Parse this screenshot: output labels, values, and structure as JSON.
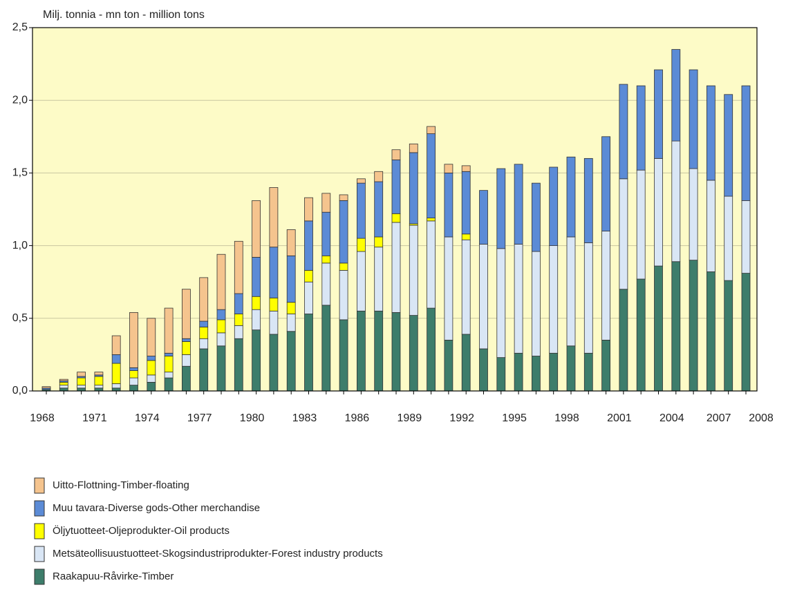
{
  "chart_data": {
    "type": "stacked_bar",
    "y_label": "Milj. tonnia - mn ton - million tons",
    "categories": [
      "1968",
      null,
      null,
      "1971",
      null,
      null,
      "1974",
      null,
      null,
      "1977",
      null,
      null,
      "1980",
      null,
      null,
      "1983",
      null,
      null,
      "1986",
      null,
      null,
      "1989",
      null,
      null,
      "1992",
      null,
      null,
      "1995",
      null,
      null,
      "1998",
      null,
      null,
      "2001",
      null,
      null,
      "2004",
      null,
      null,
      "2007",
      "2008"
    ],
    "series": [
      {
        "name": "Uitto-Flottning-Timber-floating",
        "color": "#f5c48e",
        "values": [
          0.01,
          0.01,
          0.03,
          0.02,
          0.13,
          0.38,
          0.26,
          0.31,
          0.34,
          0.3,
          0.38,
          0.36,
          0.39,
          0.41,
          0.18,
          0.16,
          0.13,
          0.04,
          0.03,
          0.07,
          0.07,
          0.06,
          0.05,
          0.06,
          0.04,
          0,
          0,
          0,
          0,
          0,
          0,
          0,
          0,
          0,
          0,
          0,
          0,
          0,
          0,
          0,
          0
        ]
      },
      {
        "name": "Muu tavara-Diverse gods-Other merchandise",
        "color": "#5b8bd6",
        "values": [
          0.01,
          0.01,
          0.01,
          0.01,
          0.06,
          0.02,
          0.03,
          0.02,
          0.02,
          0.04,
          0.07,
          0.14,
          0.27,
          0.35,
          0.32,
          0.34,
          0.3,
          0.43,
          0.38,
          0.38,
          0.37,
          0.49,
          0.58,
          0.44,
          0.43,
          0.37,
          0.55,
          0.55,
          0.47,
          0.54,
          0.55,
          0.58,
          0.65,
          0.65,
          0.58,
          0.61,
          0.63,
          0.68,
          0.65,
          0.7,
          0.79
        ]
      },
      {
        "name": "Öljytuotteet-Oljeprodukter-Oil products",
        "color": "#ffff00",
        "values": [
          0,
          0.02,
          0.05,
          0.06,
          0.14,
          0.05,
          0.1,
          0.11,
          0.09,
          0.08,
          0.09,
          0.08,
          0.09,
          0.09,
          0.08,
          0.08,
          0.05,
          0.05,
          0.09,
          0.07,
          0.06,
          0.01,
          0.02,
          0,
          0.04,
          0,
          0,
          0,
          0,
          0,
          0,
          0,
          0,
          0,
          0,
          0,
          0,
          0,
          0,
          0,
          0
        ]
      },
      {
        "name": "Metsäteollisuustuotteet-Skogsindustriprodukter-Forest industry products",
        "color": "#d9e6f5",
        "values": [
          0,
          0.02,
          0.02,
          0.02,
          0.03,
          0.05,
          0.05,
          0.04,
          0.08,
          0.07,
          0.09,
          0.09,
          0.14,
          0.16,
          0.12,
          0.22,
          0.29,
          0.34,
          0.41,
          0.44,
          0.62,
          0.62,
          0.6,
          0.71,
          0.65,
          0.72,
          0.75,
          0.75,
          0.72,
          0.74,
          0.75,
          0.76,
          0.75,
          0.76,
          0.75,
          0.74,
          0.83,
          0.63,
          0.63,
          0.58,
          0.5
        ]
      },
      {
        "name": "Raakapuu-Råvirke-Timber",
        "color": "#3d7d6b",
        "values": [
          0.01,
          0.02,
          0.02,
          0.02,
          0.02,
          0.04,
          0.06,
          0.09,
          0.17,
          0.29,
          0.31,
          0.36,
          0.42,
          0.39,
          0.41,
          0.53,
          0.59,
          0.49,
          0.55,
          0.55,
          0.54,
          0.52,
          0.57,
          0.35,
          0.39,
          0.29,
          0.23,
          0.26,
          0.24,
          0.26,
          0.31,
          0.26,
          0.35,
          0.7,
          0.77,
          0.86,
          0.89,
          0.9,
          0.82,
          0.76,
          0.81
        ]
      }
    ],
    "ylim": [
      0,
      2.5
    ],
    "yticks": [
      {
        "value": 0,
        "label": "0,0"
      },
      {
        "value": 0.5,
        "label": "0,5"
      },
      {
        "value": 1.0,
        "label": "1,0"
      },
      {
        "value": 1.5,
        "label": "1,5"
      },
      {
        "value": 2.0,
        "label": "2,0"
      },
      {
        "value": 2.5,
        "label": "2,5"
      }
    ],
    "grid": true,
    "background": "#fdfbc7"
  }
}
